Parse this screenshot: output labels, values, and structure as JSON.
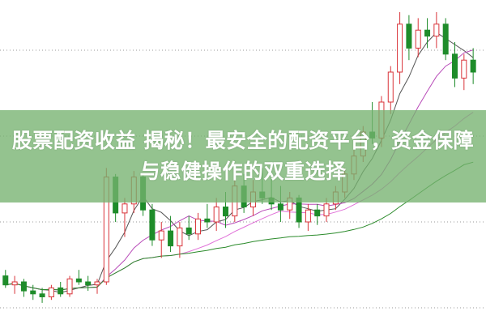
{
  "title": "股票配资收益 揭秘！最安全的配资平台，资金保障与稳健操作的双重选择",
  "colors": {
    "up": "#d9343a",
    "down": "#1e8c2a",
    "banner": "#76b270",
    "ma5": "#555555",
    "ma10": "#b84bb8",
    "ma20": "#e070d8",
    "ma60": "#2a8a2a"
  },
  "chart_data": {
    "type": "candlestick",
    "grid": true,
    "ohlc": [
      [
        12,
        14,
        8,
        9
      ],
      [
        9,
        12,
        6,
        10
      ],
      [
        10,
        11,
        5,
        7
      ],
      [
        7,
        9,
        4,
        6
      ],
      [
        6,
        8,
        3,
        5
      ],
      [
        5,
        9,
        4,
        8
      ],
      [
        8,
        10,
        5,
        6
      ],
      [
        6,
        12,
        5,
        11
      ],
      [
        11,
        14,
        9,
        10
      ],
      [
        10,
        12,
        7,
        9
      ],
      [
        9,
        11,
        6,
        10
      ],
      [
        10,
        48,
        9,
        45
      ],
      [
        45,
        46,
        30,
        33
      ],
      [
        33,
        38,
        25,
        36
      ],
      [
        36,
        47,
        33,
        45
      ],
      [
        45,
        46,
        32,
        34
      ],
      [
        34,
        36,
        22,
        24
      ],
      [
        24,
        30,
        18,
        27
      ],
      [
        27,
        32,
        20,
        22
      ],
      [
        22,
        30,
        18,
        28
      ],
      [
        28,
        32,
        24,
        26
      ],
      [
        26,
        33,
        24,
        31
      ],
      [
        31,
        36,
        28,
        30
      ],
      [
        30,
        38,
        27,
        35
      ],
      [
        35,
        40,
        28,
        32
      ],
      [
        32,
        44,
        30,
        42
      ],
      [
        42,
        46,
        33,
        35
      ],
      [
        35,
        44,
        32,
        40
      ],
      [
        40,
        48,
        36,
        38
      ],
      [
        38,
        50,
        34,
        36
      ],
      [
        36,
        42,
        30,
        34
      ],
      [
        34,
        40,
        31,
        38
      ],
      [
        38,
        39,
        28,
        30
      ],
      [
        30,
        36,
        27,
        34
      ],
      [
        34,
        36,
        29,
        32
      ],
      [
        32,
        38,
        30,
        36
      ],
      [
        36,
        42,
        34,
        40
      ],
      [
        40,
        48,
        38,
        46
      ],
      [
        46,
        54,
        44,
        52
      ],
      [
        52,
        62,
        50,
        60
      ],
      [
        60,
        70,
        56,
        58
      ],
      [
        58,
        72,
        55,
        70
      ],
      [
        70,
        82,
        66,
        80
      ],
      [
        80,
        100,
        76,
        96
      ],
      [
        96,
        99,
        84,
        88
      ],
      [
        88,
        98,
        85,
        94
      ],
      [
        94,
        98,
        88,
        92
      ],
      [
        92,
        100,
        88,
        96
      ],
      [
        96,
        98,
        84,
        86
      ],
      [
        86,
        90,
        75,
        78
      ],
      [
        78,
        86,
        74,
        84
      ],
      [
        84,
        88,
        76,
        80
      ]
    ]
  }
}
